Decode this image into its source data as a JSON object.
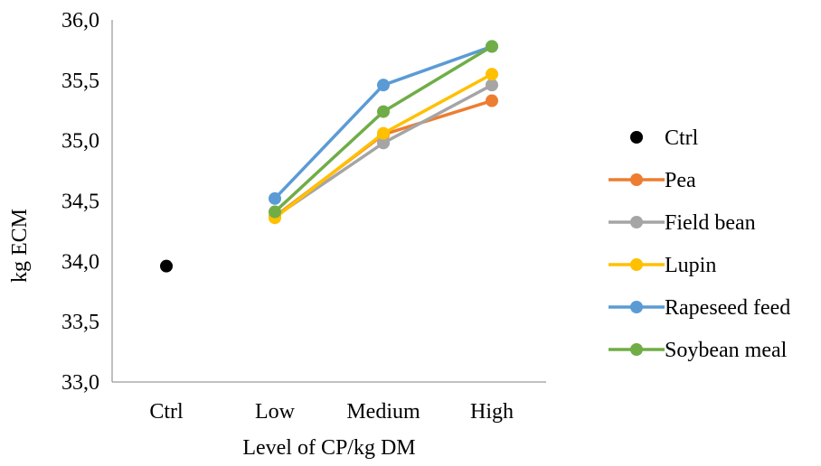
{
  "chart_data": {
    "type": "line",
    "title": "",
    "xlabel": "Level of CP/kg DM",
    "ylabel": "kg ECM",
    "categories": [
      "Ctrl",
      "Low",
      "Medium",
      "High"
    ],
    "ylim": [
      33.0,
      36.0
    ],
    "yticks": [
      "33,0",
      "33,5",
      "34,0",
      "34,5",
      "35,0",
      "35,5",
      "36,0"
    ],
    "grid": false,
    "legend_position": "right",
    "series": [
      {
        "name": "Ctrl",
        "color": "#000000",
        "values": [
          33.96,
          null,
          null,
          null
        ],
        "line": false
      },
      {
        "name": "Pea",
        "color": "#ED7D31",
        "values": [
          null,
          34.37,
          35.05,
          35.33
        ],
        "line": true
      },
      {
        "name": "Field bean",
        "color": "#A5A5A5",
        "values": [
          null,
          34.37,
          34.98,
          35.46
        ],
        "line": true
      },
      {
        "name": "Lupin",
        "color": "#FFC000",
        "values": [
          null,
          34.36,
          35.06,
          35.55
        ],
        "line": true
      },
      {
        "name": "Rapeseed feed",
        "color": "#5B9BD5",
        "values": [
          null,
          34.52,
          35.46,
          35.78
        ],
        "line": true
      },
      {
        "name": "Soybean meal",
        "color": "#70AD47",
        "values": [
          null,
          34.41,
          35.24,
          35.78
        ],
        "line": true
      }
    ]
  }
}
